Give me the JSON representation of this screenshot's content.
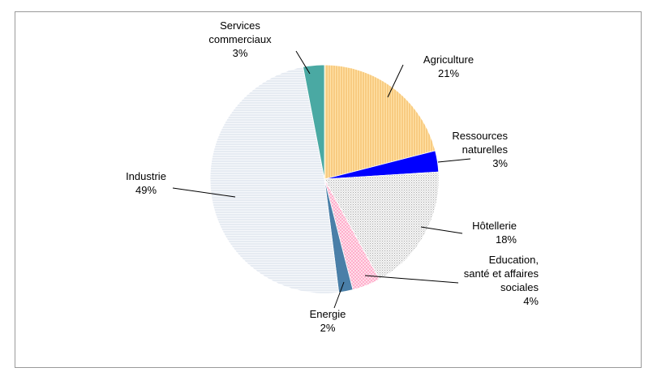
{
  "chart_data": {
    "type": "pie",
    "title": "",
    "start_angle_deg": 0,
    "direction": "clockwise",
    "legend": "none",
    "slices": [
      {
        "label": [
          "Agriculture"
        ],
        "percent_label": "21%",
        "value": 21,
        "color": "#ffd27f",
        "pattern": "vertical-lines"
      },
      {
        "label": [
          "Ressources",
          "naturelles"
        ],
        "percent_label": "3%",
        "value": 3,
        "color": "#0000ff",
        "pattern": "solid"
      },
      {
        "label": [
          "Hôtellerie"
        ],
        "percent_label": "18%",
        "value": 18,
        "color": "#d8d8d8",
        "pattern": "dots"
      },
      {
        "label": [
          "Education,",
          "santé et affaires",
          "sociales"
        ],
        "percent_label": "4%",
        "value": 4,
        "color": "#ffcce0",
        "pattern": "crosshatch"
      },
      {
        "label": [
          "Energie"
        ],
        "percent_label": "2%",
        "value": 2,
        "color": "#4a7fa8",
        "pattern": "solid"
      },
      {
        "label": [
          "Industrie"
        ],
        "percent_label": "49%",
        "value": 49,
        "color": "#e8eef7",
        "pattern": "horizontal-lines"
      },
      {
        "label": [
          "Services",
          "commerciaux"
        ],
        "percent_label": "3%",
        "value": 3,
        "color": "#4aa9a3",
        "pattern": "solid"
      }
    ]
  }
}
